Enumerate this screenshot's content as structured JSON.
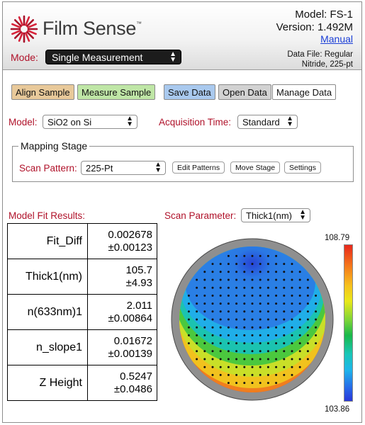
{
  "header": {
    "brand": "Film Sense",
    "trademark": "™",
    "model": "Model: FS-1",
    "version": "Version: 1.492M",
    "manual_link": "Manual",
    "mode_label": "Mode:",
    "mode_value": "Single Measurement",
    "datafile_line1": "Data File: Regular",
    "datafile_line2": "Nitride, 225-pt"
  },
  "toolbar": {
    "align": "Align Sample",
    "measure": "Measure Sample",
    "save": "Save Data",
    "open": "Open Data",
    "manage": "Manage Data"
  },
  "settings": {
    "model_label": "Model:",
    "model_value": "SiO2 on Si",
    "acq_label": "Acquisition Time:",
    "acq_value": "Standard"
  },
  "mapping": {
    "legend": "Mapping Stage",
    "scan_label": "Scan Pattern:",
    "scan_value": "225-Pt",
    "edit": "Edit Patterns",
    "move": "Move Stage",
    "settings": "Settings"
  },
  "results": {
    "title": "Model Fit Results:",
    "rows": [
      {
        "name": "Fit_Diff",
        "value": "0.002678",
        "error": "±0.00123"
      },
      {
        "name": "Thick1(nm)",
        "value": "105.7",
        "error": "±4.93"
      },
      {
        "name": "n(633nm)1",
        "value": "2.011",
        "error": "±0.00864"
      },
      {
        "name": "n_slope1",
        "value": "0.01672",
        "error": "±0.00139"
      },
      {
        "name": "Z Height",
        "value": "0.5247",
        "error": "±0.0486"
      }
    ]
  },
  "scan": {
    "label": "Scan Parameter:",
    "value": "Thick1(nm)",
    "max": "108.79",
    "min": "103.86"
  },
  "colors": {
    "accent_red": "#b0122a",
    "align": "#e8c99a",
    "measure": "#bfe6a6",
    "save": "#a9c9ee"
  },
  "icons": {
    "logo": "starburst-logo-icon",
    "select_arrow": "updown-arrow-icon"
  }
}
